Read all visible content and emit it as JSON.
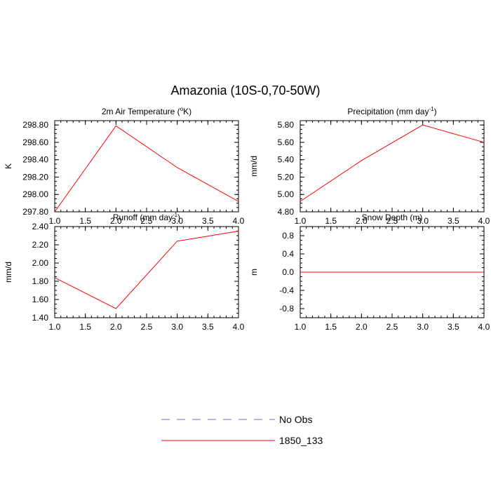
{
  "figure_title": "Amazonia (10S-0,70-50W)",
  "colors": {
    "model": "#ff0000",
    "obs": "#6b6bff",
    "axis": "#000000"
  },
  "legend": {
    "entries": [
      {
        "label": "No Obs",
        "style": "dashed",
        "color": "#6b6bff"
      },
      {
        "label": "1850_133",
        "style": "solid",
        "color": "#ff0000"
      }
    ]
  },
  "chart_data": [
    {
      "id": "temp",
      "type": "line",
      "title_main": "2m Air Temperature (",
      "title_sup": "o",
      "title_end": "K)",
      "ylabel": "K",
      "xlim": [
        1.0,
        4.0
      ],
      "xticks": [
        "1.0",
        "1.5",
        "2.0",
        "2.5",
        "3.0",
        "3.5",
        "4.0"
      ],
      "ylim": [
        297.8,
        298.85
      ],
      "yticks": [
        297.8,
        298.0,
        298.2,
        298.4,
        298.6,
        298.8
      ],
      "ytick_labels": [
        "297.80",
        "298.00",
        "298.20",
        "298.40",
        "298.60",
        "298.80"
      ],
      "series": [
        {
          "name": "1850_133",
          "x": [
            1,
            2,
            3,
            4
          ],
          "values": [
            297.8,
            298.79,
            298.31,
            297.92
          ]
        }
      ]
    },
    {
      "id": "precip",
      "type": "line",
      "title_main": "Precipitation (mm day",
      "title_sup": "-1",
      "title_end": ")",
      "ylabel": "mm/d",
      "xlim": [
        1.0,
        4.0
      ],
      "xticks": [
        "1.0",
        "1.5",
        "2.0",
        "2.5",
        "3.0",
        "3.5",
        "4.0"
      ],
      "ylim": [
        4.8,
        5.85
      ],
      "yticks": [
        4.8,
        5.0,
        5.2,
        5.4,
        5.6,
        5.8
      ],
      "ytick_labels": [
        "4.80",
        "5.00",
        "5.20",
        "5.40",
        "5.60",
        "5.80"
      ],
      "series": [
        {
          "name": "1850_133",
          "x": [
            1,
            2,
            3,
            4
          ],
          "values": [
            4.92,
            5.39,
            5.8,
            5.6
          ]
        }
      ]
    },
    {
      "id": "runoff",
      "type": "line",
      "title_main": "Runoff (mm day",
      "title_sup": "-1",
      "title_end": ")",
      "ylabel": "mm/d",
      "xlim": [
        1.0,
        4.0
      ],
      "xticks": [
        "1.0",
        "1.5",
        "2.0",
        "2.5",
        "3.0",
        "3.5",
        "4.0"
      ],
      "ylim": [
        1.4,
        2.4
      ],
      "yticks": [
        1.4,
        1.6,
        1.8,
        2.0,
        2.2,
        2.4
      ],
      "ytick_labels": [
        "1.40",
        "1.60",
        "1.80",
        "2.00",
        "2.20",
        "2.40"
      ],
      "series": [
        {
          "name": "1850_133",
          "x": [
            1,
            2,
            3,
            4
          ],
          "values": [
            1.84,
            1.5,
            2.24,
            2.35
          ]
        }
      ]
    },
    {
      "id": "snow",
      "type": "line",
      "title_main": "Snow Depth (m)",
      "title_sup": "",
      "title_end": "",
      "ylabel": "m",
      "xlim": [
        1.0,
        4.0
      ],
      "xticks": [
        "1.0",
        "1.5",
        "2.0",
        "2.5",
        "3.0",
        "3.5",
        "4.0"
      ],
      "ylim": [
        -1.0,
        1.0
      ],
      "yticks": [
        -0.8,
        -0.4,
        0.0,
        0.4,
        0.8
      ],
      "ytick_labels": [
        "-0.8",
        "-0.4",
        "0.0",
        "0.4",
        "0.8"
      ],
      "series": [
        {
          "name": "1850_133",
          "x": [
            1,
            2,
            3,
            4
          ],
          "values": [
            0,
            0,
            0,
            0
          ]
        }
      ]
    }
  ]
}
